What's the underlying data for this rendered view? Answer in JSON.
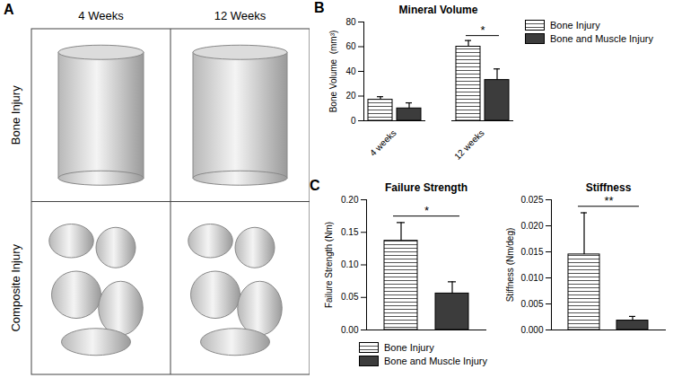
{
  "panel_a": {
    "label": "A",
    "columns": [
      "4 Weeks",
      "12 Weeks"
    ],
    "rows": [
      "Bone Injury",
      "Composite Injury"
    ]
  },
  "chart_data": [
    {
      "type": "bar",
      "panel_label": "B",
      "title": "Mineral Volume",
      "y_label": "Bone Volume  (mm³)",
      "categories": [
        "4 weeks",
        "12 weeks"
      ],
      "series": [
        {
          "name": "Bone Injury",
          "color": "#ffffff",
          "values": [
            17,
            60
          ],
          "error": [
            2.5,
            5
          ]
        },
        {
          "name": "Bone and Muscle Injury",
          "color": "#3c3c3c",
          "values": [
            10,
            33
          ],
          "error": [
            4.5,
            9
          ]
        }
      ],
      "ylim": [
        0,
        80
      ],
      "yticks": [
        0,
        20,
        40,
        60,
        80
      ],
      "grid": false,
      "legend": "right",
      "significance": [
        {
          "category": "12 weeks",
          "label": "*"
        }
      ]
    },
    {
      "type": "bar",
      "panel_label": "C",
      "title": "Failure Strength",
      "y_label": "Failure Strength (Nm)",
      "categories": [
        null
      ],
      "series": [
        {
          "name": "Bone Injury",
          "color": "#ffffff",
          "values": [
            0.137
          ],
          "error": [
            0.028
          ]
        },
        {
          "name": "Bone and Muscle Injury",
          "color": "#3c3c3c",
          "values": [
            0.056
          ],
          "error": [
            0.018
          ]
        }
      ],
      "ylim": [
        0,
        0.2
      ],
      "yticks": [
        {
          "value": 0,
          "label": "0.00"
        },
        {
          "value": 0.05,
          "label": "0.05"
        },
        {
          "value": 0.1,
          "label": "0.10"
        },
        {
          "value": 0.15,
          "label": "0.15"
        },
        {
          "value": 0.2,
          "label": "0.20"
        }
      ],
      "grid": false,
      "tick_labels": "y",
      "legend": "bottom",
      "significance": [
        {
          "category": null,
          "label": "*"
        }
      ]
    },
    {
      "type": "bar",
      "title": "Stiffness",
      "y_label": "Stiffness (Nm/deg)",
      "categories": [
        null
      ],
      "series": [
        {
          "name": "Bone Injury",
          "color": "#ffffff",
          "values": [
            0.0145
          ],
          "error": [
            0.008
          ]
        },
        {
          "name": "Bone and Muscle Injury",
          "color": "#3c3c3c",
          "values": [
            0.0018
          ],
          "error": [
            0.0008
          ]
        }
      ],
      "ylim": [
        0,
        0.025
      ],
      "yticks": [
        {
          "value": 0,
          "label": "0.000"
        },
        {
          "value": 0.005,
          "label": "0.005"
        },
        {
          "value": 0.01,
          "label": "0.010"
        },
        {
          "value": 0.015,
          "label": "0.015"
        },
        {
          "value": 0.02,
          "label": "0.020"
        },
        {
          "value": 0.025,
          "label": "0.025"
        }
      ],
      "grid": false,
      "tick_labels": "y",
      "significance": [
        {
          "category": null,
          "label": "**"
        }
      ]
    }
  ]
}
